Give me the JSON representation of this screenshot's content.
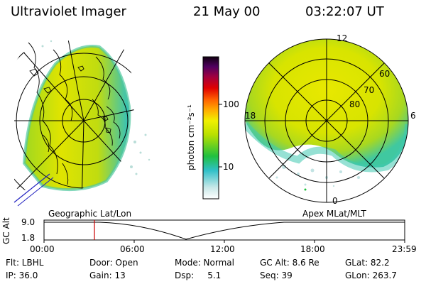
{
  "header": {
    "title": "Ultraviolet Imager",
    "date": "21 May 00",
    "time": "03:22:07 UT"
  },
  "colorbar": {
    "unit": "photon cm⁻²s⁻¹",
    "tick_100": "100",
    "tick_10": "10"
  },
  "left_map": {
    "label": "Geographic Lat/Lon"
  },
  "right_map": {
    "label": "Apex MLat/MLT",
    "mlt_12": "12",
    "mlt_18": "18",
    "mlt_6": "6",
    "mlt_0": "0",
    "lat_60": "60",
    "lat_70": "70",
    "lat_80": "80"
  },
  "timeline": {
    "axis_label": "GC Alt",
    "y_max": "9.0",
    "y_min": "1.8",
    "ticks": [
      "00:00",
      "06:00",
      "12:00",
      "18:00",
      "23:59"
    ],
    "current_time_fraction": 0.14
  },
  "info": {
    "flt": "Flt: LBHL",
    "door": "Door: Open",
    "mode": "Mode: Normal",
    "gcalt": "GC Alt: 8.6 Re",
    "glat": "GLat:  82.2",
    "ip": "IP: 36.0",
    "gain": "Gain: 13",
    "dsp": "Dsp:     5.1",
    "seq": "Seq: 39",
    "glon": "GLon: 263.7"
  },
  "colors": {
    "low": "#9cd0c0",
    "mid": "#e8e800",
    "high": "#b80000",
    "timeline_marker": "#cc0000"
  }
}
